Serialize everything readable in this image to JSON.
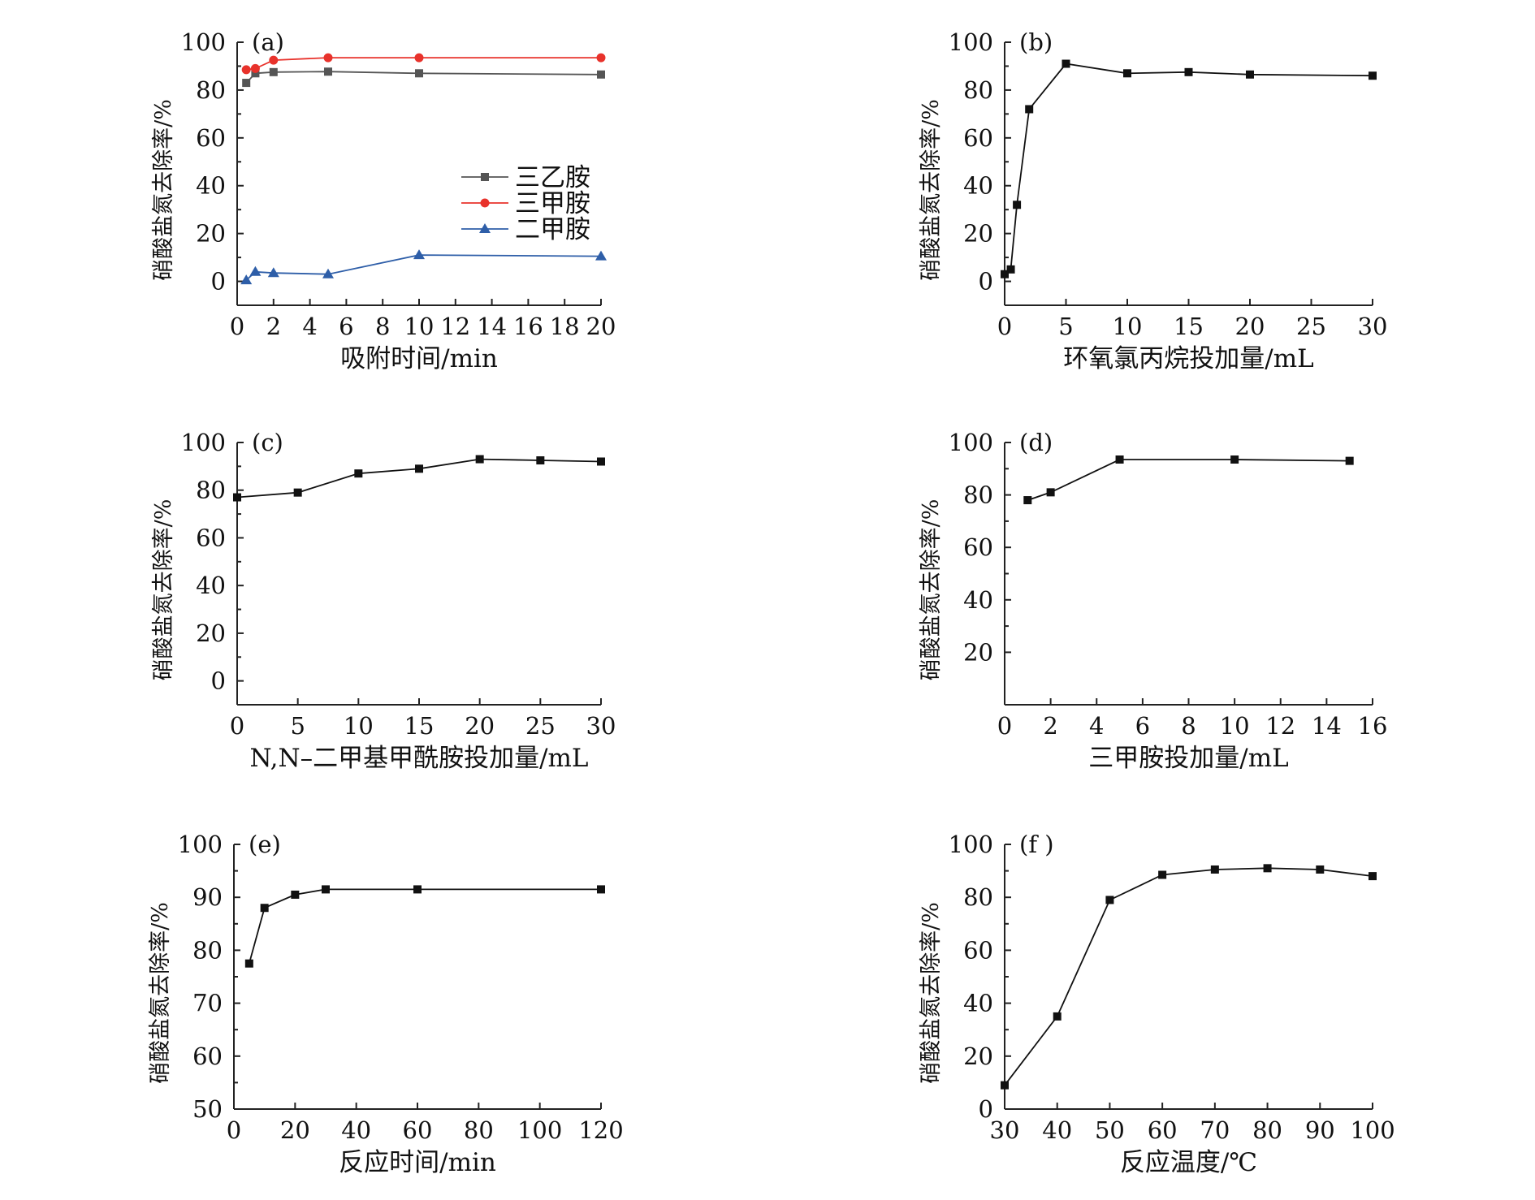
{
  "chart_data": [
    {
      "id": "a",
      "type": "line",
      "panel_label": "(a)",
      "xlabel": "吸附时间/min",
      "ylabel": "硝酸盐氮去除率/%",
      "xlim": [
        0,
        20
      ],
      "ylim": [
        -10,
        100
      ],
      "xticks": [
        0,
        2,
        4,
        6,
        8,
        10,
        12,
        14,
        16,
        18,
        20
      ],
      "yticks": [
        0,
        20,
        40,
        60,
        80,
        100
      ],
      "legend_position": "center-right",
      "series": [
        {
          "name": "三乙胺",
          "color": "#555555",
          "marker": "square",
          "x": [
            0.5,
            1,
            2,
            5,
            10,
            20
          ],
          "y": [
            83,
            87,
            87.5,
            87.7,
            87,
            86.5
          ]
        },
        {
          "name": "三甲胺",
          "color": "#e8322b",
          "marker": "circle",
          "x": [
            0.5,
            1,
            2,
            5,
            10,
            20
          ],
          "y": [
            88.5,
            89,
            92.5,
            93.5,
            93.5,
            93.5
          ]
        },
        {
          "name": "二甲胺",
          "color": "#2e5ea8",
          "marker": "triangle",
          "x": [
            0.5,
            1,
            2,
            5,
            10,
            20
          ],
          "y": [
            0.5,
            4,
            3.5,
            3,
            11,
            10.5
          ]
        }
      ]
    },
    {
      "id": "b",
      "type": "line",
      "panel_label": "(b)",
      "xlabel": "环氧氯丙烷投加量/mL",
      "ylabel": "硝酸盐氮去除率/%",
      "xlim": [
        0,
        30
      ],
      "ylim": [
        -10,
        100
      ],
      "xticks": [
        0,
        5,
        10,
        15,
        20,
        25,
        30
      ],
      "yticks": [
        0,
        20,
        40,
        60,
        80,
        100
      ],
      "series": [
        {
          "name": "",
          "color": "#111111",
          "marker": "square",
          "x": [
            0,
            0.5,
            1,
            2,
            5,
            10,
            15,
            20,
            30
          ],
          "y": [
            3,
            5,
            32,
            72,
            91,
            87,
            87.5,
            86.5,
            86
          ]
        }
      ]
    },
    {
      "id": "c",
      "type": "line",
      "panel_label": "(c)",
      "xlabel": "N,N–二甲基甲酰胺投加量/mL",
      "ylabel": "硝酸盐氮去除率/%",
      "xlim": [
        0,
        30
      ],
      "ylim": [
        -10,
        100
      ],
      "xticks": [
        0,
        5,
        10,
        15,
        20,
        25,
        30
      ],
      "yticks": [
        0,
        20,
        40,
        60,
        80,
        100
      ],
      "series": [
        {
          "name": "",
          "color": "#111111",
          "marker": "square",
          "x": [
            0,
            5,
            10,
            15,
            20,
            25,
            30
          ],
          "y": [
            77,
            79,
            87,
            89,
            93,
            92.5,
            92
          ]
        }
      ]
    },
    {
      "id": "d",
      "type": "line",
      "panel_label": "(d)",
      "xlabel": "三甲胺投加量/mL",
      "ylabel": "硝酸盐氮去除率/%",
      "xlim": [
        0,
        16
      ],
      "ylim": [
        0,
        100
      ],
      "xticks": [
        0,
        2,
        4,
        6,
        8,
        10,
        12,
        14,
        16
      ],
      "yticks": [
        20,
        40,
        60,
        80,
        100
      ],
      "series": [
        {
          "name": "",
          "color": "#111111",
          "marker": "square",
          "x": [
            1,
            2,
            5,
            10,
            15
          ],
          "y": [
            78,
            81,
            93.5,
            93.5,
            93
          ]
        }
      ]
    },
    {
      "id": "e",
      "type": "line",
      "panel_label": "(e)",
      "xlabel": "反应时间/min",
      "ylabel": "硝酸盐氮去除率/%",
      "xlim": [
        0,
        120
      ],
      "ylim": [
        50,
        100
      ],
      "xticks": [
        0,
        20,
        40,
        60,
        80,
        100,
        120
      ],
      "yticks": [
        50,
        60,
        70,
        80,
        90,
        100
      ],
      "series": [
        {
          "name": "",
          "color": "#111111",
          "marker": "square",
          "x": [
            5,
            10,
            20,
            30,
            60,
            120
          ],
          "y": [
            77.5,
            88,
            90.5,
            91.5,
            91.5,
            91.5
          ]
        }
      ]
    },
    {
      "id": "f",
      "type": "line",
      "panel_label": "(f )",
      "xlabel": "反应温度/℃",
      "ylabel": "硝酸盐氮去除率/%",
      "xlim": [
        30,
        100
      ],
      "ylim": [
        0,
        100
      ],
      "xticks": [
        30,
        40,
        50,
        60,
        70,
        80,
        90,
        100
      ],
      "yticks": [
        0,
        20,
        40,
        60,
        80,
        100
      ],
      "series": [
        {
          "name": "",
          "color": "#111111",
          "marker": "square",
          "x": [
            30,
            40,
            50,
            60,
            70,
            80,
            90,
            100
          ],
          "y": [
            9,
            35,
            79,
            88.5,
            90.5,
            91,
            90.5,
            88
          ]
        }
      ]
    }
  ]
}
